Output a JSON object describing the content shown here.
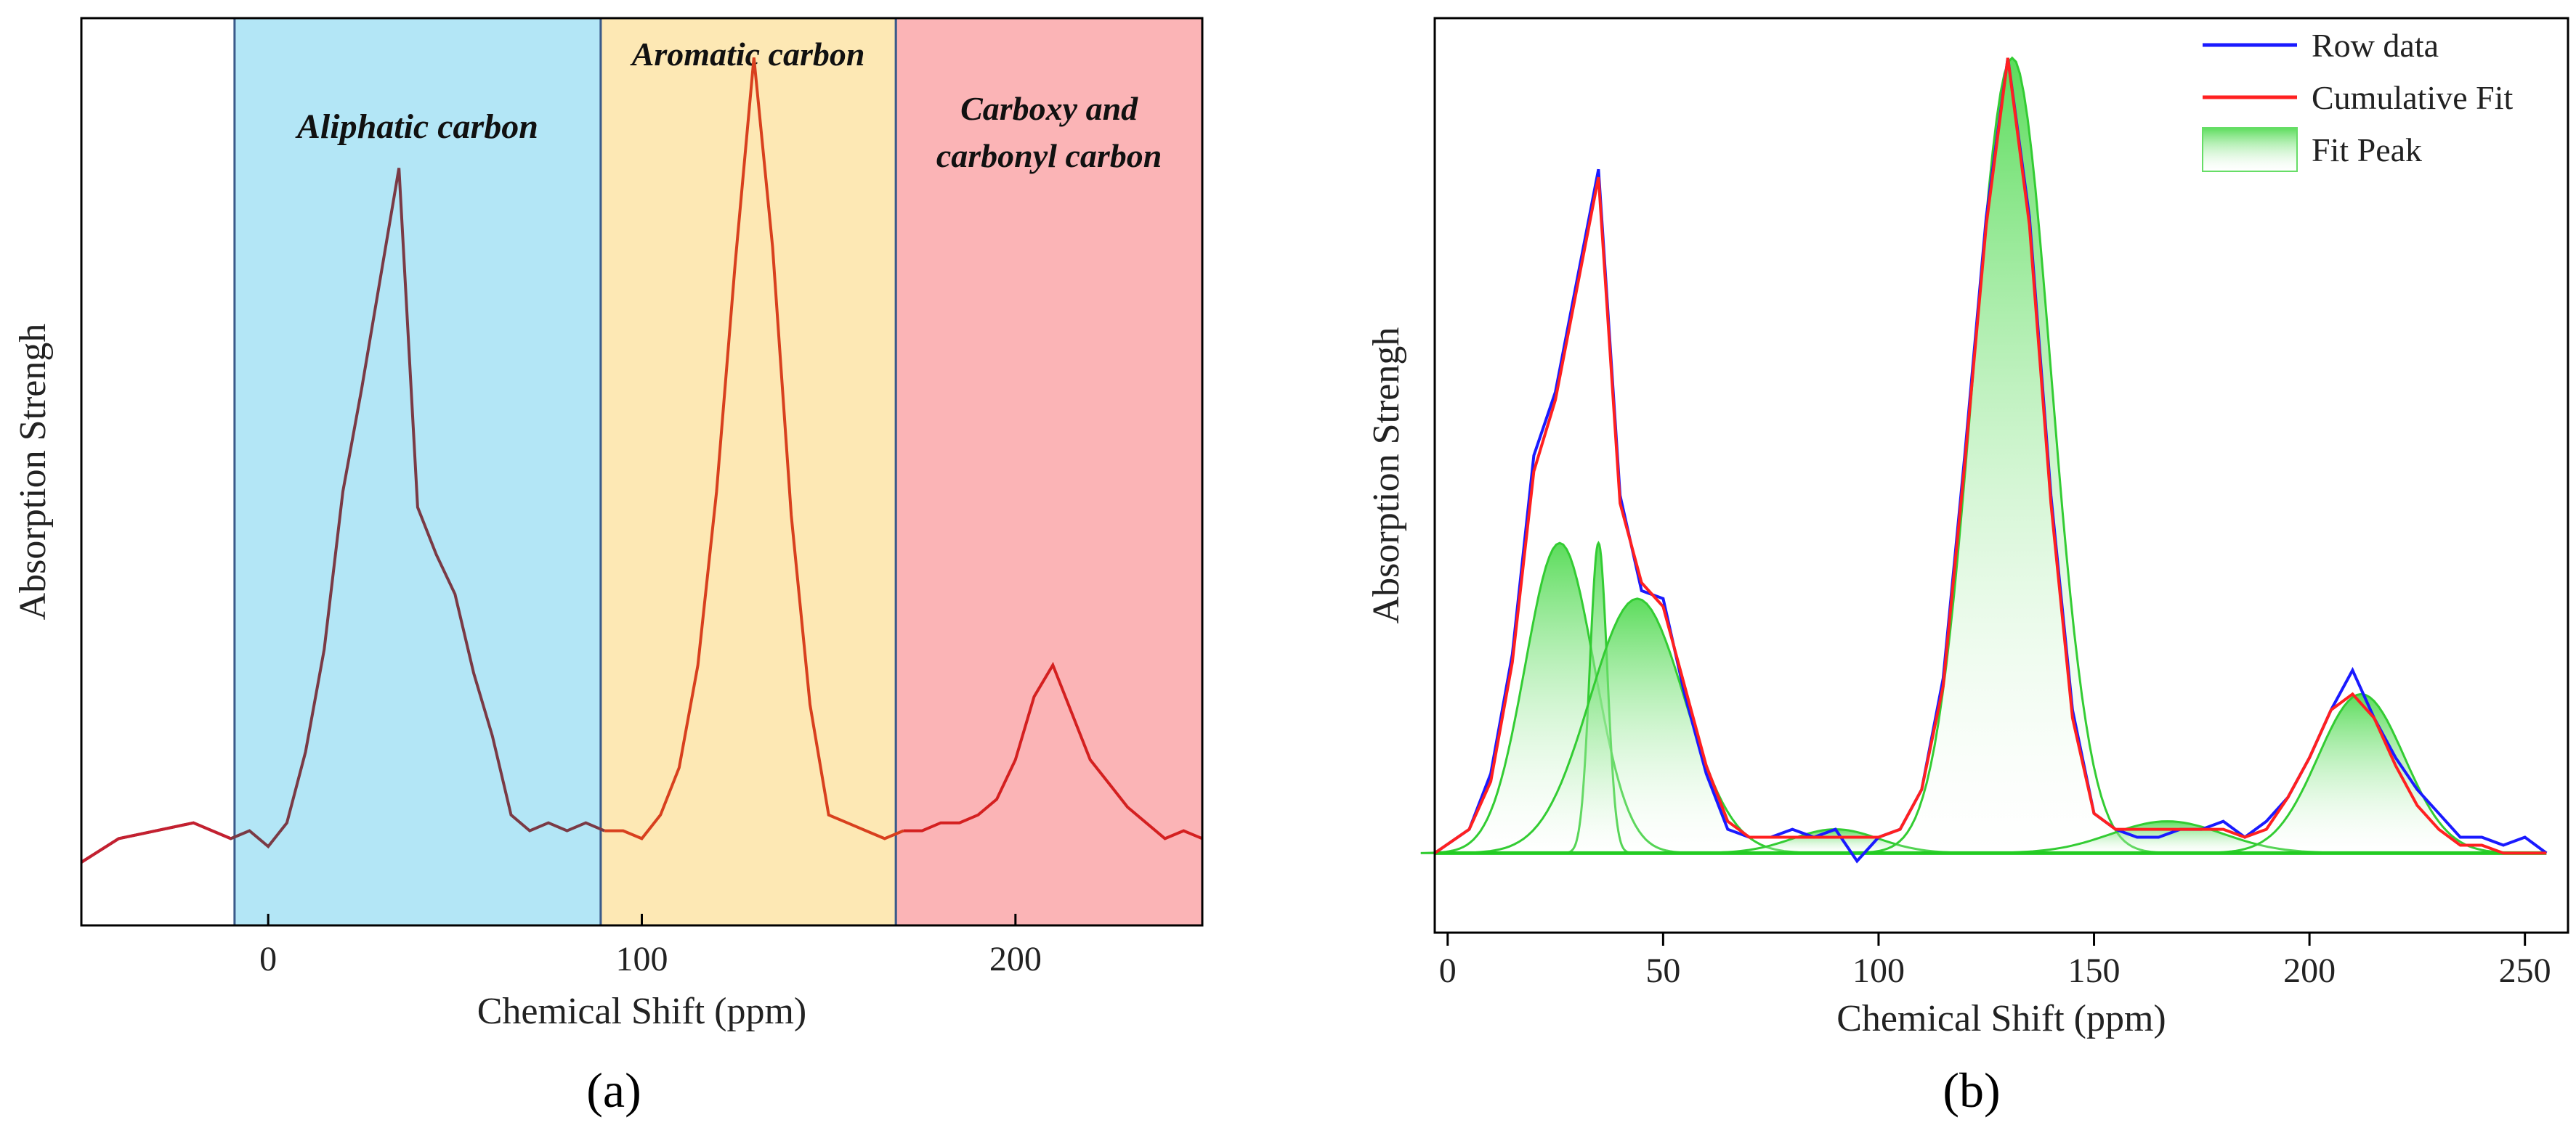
{
  "chart_data": [
    {
      "panel": "a",
      "type": "line",
      "panel_label": "(a)",
      "xlabel": "Chemical Shift (ppm)",
      "ylabel": "Absorption Strengh",
      "xlim": [
        -50,
        250
      ],
      "ylim": [
        -0.1,
        1.05
      ],
      "xticks": [
        0,
        100,
        200
      ],
      "colors": {
        "aliphatic_bg": "#b3e6f6",
        "aromatic_bg": "#fde8b4",
        "carboxy_bg": "#fbb4b6",
        "border": "#3a5a8a",
        "line_left": "#7a3a45",
        "line_right": "#d42020"
      },
      "regions": [
        {
          "name": "Aliphatic carbon",
          "label_lines": [
            "Aliphatic carbon"
          ],
          "x_range": [
            -9,
            89
          ],
          "color": "#b3e6f6"
        },
        {
          "name": "Aromatic carbon",
          "label_lines": [
            "Aromatic carbon"
          ],
          "x_range": [
            89,
            168
          ],
          "color": "#fde8b4"
        },
        {
          "name": "Carboxy and carbonyl carbon",
          "label_lines": [
            "Carboxy and",
            "carbonyl carbon"
          ],
          "x_range": [
            168,
            250
          ],
          "color": "#fbb4b6"
        }
      ],
      "series": [
        {
          "name": "Spectrum",
          "x": [
            -50,
            -40,
            -30,
            -20,
            -10,
            -5,
            0,
            5,
            10,
            15,
            20,
            25,
            30,
            35,
            40,
            45,
            50,
            55,
            60,
            65,
            70,
            75,
            80,
            85,
            90,
            95,
            100,
            105,
            110,
            115,
            120,
            125,
            130,
            135,
            140,
            145,
            150,
            155,
            160,
            165,
            170,
            175,
            180,
            185,
            190,
            195,
            200,
            205,
            210,
            215,
            220,
            225,
            230,
            235,
            240,
            245,
            250
          ],
          "y": [
            -0.02,
            0.01,
            0.02,
            0.03,
            0.01,
            0.02,
            0.0,
            0.03,
            0.12,
            0.25,
            0.45,
            0.58,
            0.72,
            0.86,
            0.43,
            0.37,
            0.32,
            0.22,
            0.14,
            0.04,
            0.02,
            0.03,
            0.02,
            0.03,
            0.02,
            0.02,
            0.01,
            0.04,
            0.1,
            0.23,
            0.45,
            0.74,
            1.0,
            0.76,
            0.42,
            0.18,
            0.04,
            0.03,
            0.02,
            0.01,
            0.02,
            0.02,
            0.03,
            0.03,
            0.04,
            0.06,
            0.11,
            0.19,
            0.23,
            0.17,
            0.11,
            0.08,
            0.05,
            0.03,
            0.01,
            0.02,
            0.01
          ]
        }
      ]
    },
    {
      "panel": "b",
      "type": "line",
      "panel_label": "(b)",
      "xlabel": "Chemical Shift (ppm)",
      "ylabel": "Absorption Strengh",
      "xlim": [
        -3,
        260
      ],
      "ylim": [
        -0.1,
        1.05
      ],
      "xticks": [
        0,
        50,
        100,
        150,
        200,
        250
      ],
      "legend": {
        "position": "top-right",
        "entries": [
          {
            "label": "Row data",
            "color": "#1a1aff",
            "kind": "line"
          },
          {
            "label": "Cumulative Fit",
            "color": "#ff2020",
            "kind": "line"
          },
          {
            "label": "Fit Peak",
            "color": "#4fd94f",
            "kind": "area"
          }
        ]
      },
      "series": [
        {
          "name": "Row data",
          "color": "#1a1aff",
          "x": [
            -3,
            5,
            10,
            15,
            20,
            25,
            30,
            35,
            40,
            45,
            50,
            55,
            60,
            65,
            70,
            75,
            80,
            85,
            90,
            95,
            100,
            105,
            110,
            115,
            120,
            125,
            130,
            135,
            140,
            145,
            150,
            155,
            160,
            165,
            170,
            175,
            180,
            185,
            190,
            195,
            200,
            205,
            210,
            215,
            220,
            225,
            230,
            235,
            240,
            245,
            250,
            255
          ],
          "y": [
            0.0,
            0.03,
            0.1,
            0.25,
            0.5,
            0.58,
            0.72,
            0.86,
            0.45,
            0.33,
            0.32,
            0.2,
            0.1,
            0.03,
            0.02,
            0.02,
            0.03,
            0.02,
            0.03,
            -0.01,
            0.02,
            0.03,
            0.08,
            0.22,
            0.5,
            0.8,
            1.0,
            0.8,
            0.45,
            0.18,
            0.05,
            0.03,
            0.02,
            0.02,
            0.03,
            0.03,
            0.04,
            0.02,
            0.04,
            0.07,
            0.12,
            0.18,
            0.23,
            0.17,
            0.12,
            0.08,
            0.05,
            0.02,
            0.02,
            0.01,
            0.02,
            0.0
          ]
        },
        {
          "name": "Cumulative Fit",
          "color": "#ff2020",
          "x": [
            -3,
            5,
            10,
            15,
            20,
            25,
            30,
            35,
            40,
            45,
            50,
            55,
            60,
            65,
            70,
            75,
            80,
            85,
            90,
            95,
            100,
            105,
            110,
            115,
            120,
            125,
            130,
            135,
            140,
            145,
            150,
            155,
            160,
            165,
            170,
            175,
            180,
            185,
            190,
            195,
            200,
            205,
            210,
            215,
            220,
            225,
            230,
            235,
            240,
            245,
            250,
            255
          ],
          "y": [
            0.0,
            0.03,
            0.09,
            0.24,
            0.48,
            0.57,
            0.71,
            0.85,
            0.44,
            0.34,
            0.31,
            0.21,
            0.11,
            0.04,
            0.02,
            0.02,
            0.02,
            0.02,
            0.02,
            0.02,
            0.02,
            0.03,
            0.08,
            0.21,
            0.49,
            0.79,
            1.0,
            0.79,
            0.44,
            0.17,
            0.05,
            0.03,
            0.03,
            0.03,
            0.03,
            0.03,
            0.03,
            0.02,
            0.03,
            0.07,
            0.12,
            0.18,
            0.2,
            0.17,
            0.11,
            0.06,
            0.03,
            0.01,
            0.01,
            0.0,
            0.0,
            0.0
          ]
        }
      ],
      "fit_peaks": [
        {
          "center": 26,
          "height": 0.39,
          "width": 8
        },
        {
          "center": 35,
          "height": 0.39,
          "width": 2
        },
        {
          "center": 44,
          "height": 0.32,
          "width": 11
        },
        {
          "center": 90,
          "height": 0.03,
          "width": 10
        },
        {
          "center": 131,
          "height": 1.0,
          "width": 9
        },
        {
          "center": 167,
          "height": 0.04,
          "width": 13
        },
        {
          "center": 212,
          "height": 0.2,
          "width": 10
        }
      ]
    }
  ]
}
